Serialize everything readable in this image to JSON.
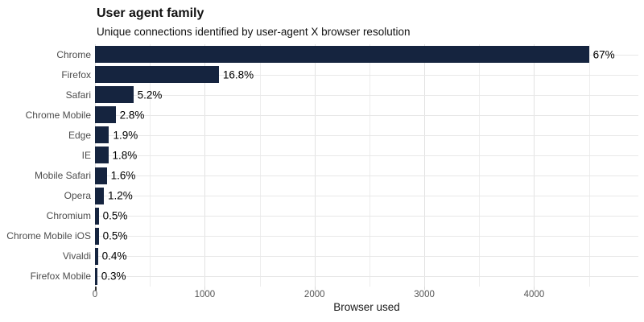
{
  "chart_data": {
    "type": "bar",
    "orientation": "horizontal",
    "title": "User agent family",
    "subtitle": "Unique connections identified by user-agent X browser resolution",
    "xlabel": "Browser used",
    "ylabel": "",
    "categories": [
      "Chrome",
      "Firefox",
      "Safari",
      "Chrome Mobile",
      "Edge",
      "IE",
      "Mobile Safari",
      "Opera",
      "Chromium",
      "Chrome Mobile iOS",
      "Vivaldi",
      "Firefox Mobile"
    ],
    "values": [
      4500,
      1128,
      349,
      188,
      128,
      121,
      107,
      81,
      34,
      34,
      27,
      20
    ],
    "value_labels": [
      "67%",
      "16.8%",
      "5.2%",
      "2.8%",
      "1.9%",
      "1.8%",
      "1.6%",
      "1.2%",
      "0.5%",
      "0.5%",
      "0.4%",
      "0.3%"
    ],
    "x_ticks": [
      0,
      1000,
      2000,
      3000,
      4000
    ],
    "x_minor_step": 500,
    "x_grid_max": 4500,
    "xlim": [
      0,
      4950
    ],
    "grid": true,
    "legend": "none",
    "bar_color": "#15243f",
    "background_color": "#ffffff",
    "major_grid_color": "#e2e2e2",
    "minor_grid_color": "#ededed",
    "row_grid_color": "#e8e8e8",
    "axis_text_color": "#555555",
    "category_text_color": "#4d4d4d",
    "value_label_color": "#000000"
  }
}
